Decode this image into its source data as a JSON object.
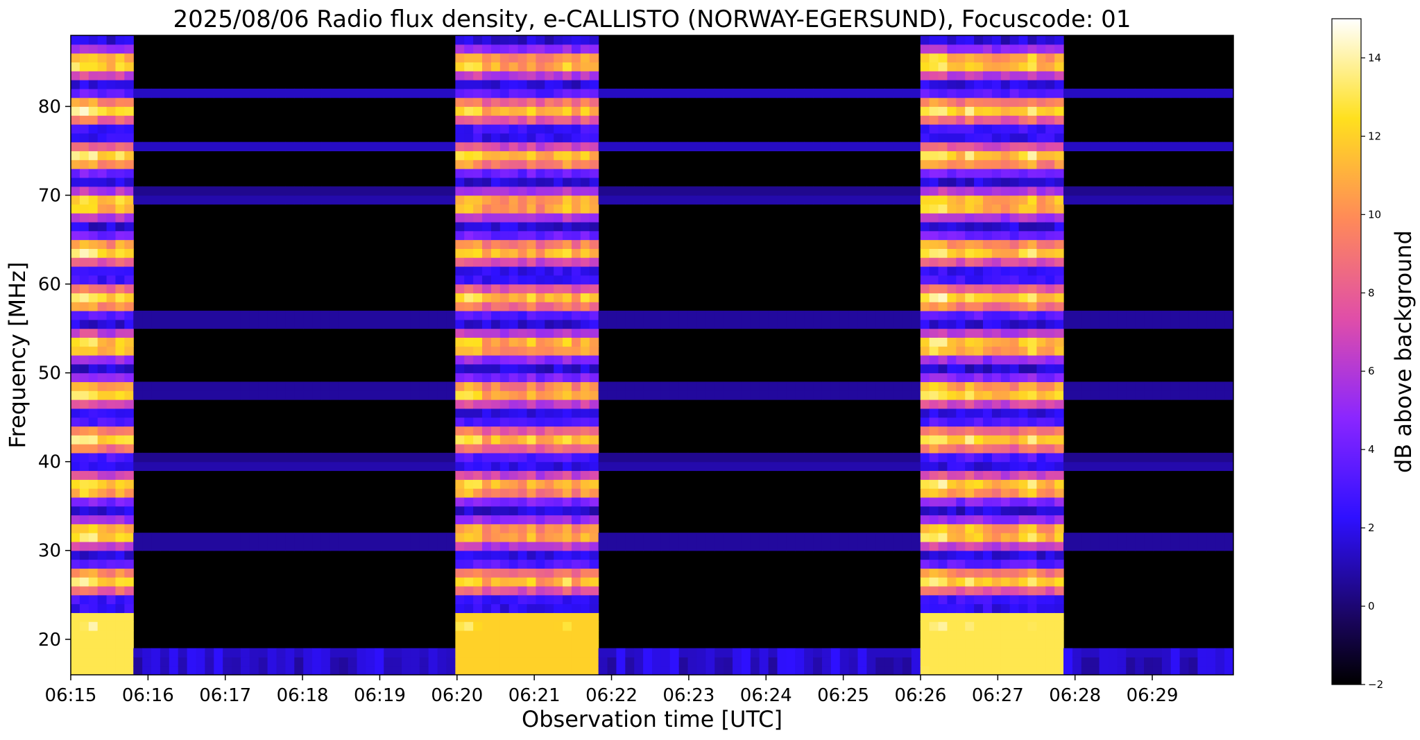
{
  "chart_data": {
    "type": "heatmap",
    "title": "2025/08/06  Radio flux density, e-CALLISTO (NORWAY-EGERSUND), Focuscode: 01",
    "xlabel": "Observation time [UTC]",
    "ylabel": "Frequency [MHz]",
    "colorbar_label": "dB above background",
    "colormap": "gnuplot2",
    "xlim_minutes": [
      0,
      15.05
    ],
    "ylim": [
      16,
      88
    ],
    "clim": [
      -2,
      15
    ],
    "x_ticks": [
      {
        "label": "06:15",
        "minute": 0
      },
      {
        "label": "06:16",
        "minute": 1
      },
      {
        "label": "06:17",
        "minute": 2
      },
      {
        "label": "06:18",
        "minute": 3
      },
      {
        "label": "06:19",
        "minute": 4
      },
      {
        "label": "06:20",
        "minute": 5
      },
      {
        "label": "06:21",
        "minute": 6
      },
      {
        "label": "06:22",
        "minute": 7
      },
      {
        "label": "06:23",
        "minute": 8
      },
      {
        "label": "06:24",
        "minute": 9
      },
      {
        "label": "06:25",
        "minute": 10
      },
      {
        "label": "06:26",
        "minute": 11
      },
      {
        "label": "06:27",
        "minute": 12
      },
      {
        "label": "06:28",
        "minute": 13
      },
      {
        "label": "06:29",
        "minute": 14
      }
    ],
    "y_ticks": [
      20,
      30,
      40,
      50,
      60,
      70,
      80
    ],
    "colorbar_ticks": [
      -2,
      0,
      2,
      4,
      6,
      8,
      10,
      12,
      14
    ],
    "bursts": [
      {
        "start_minute": 0.0,
        "end_minute": 0.85,
        "peak_db": 15,
        "label": "06:15-06:16"
      },
      {
        "start_minute": 5.0,
        "end_minute": 6.85,
        "peak_db": 14,
        "label": "06:20-06:22"
      },
      {
        "start_minute": 11.0,
        "end_minute": 12.85,
        "peak_db": 15,
        "label": "06:26-06:28"
      }
    ],
    "persistent_bands_mhz": [
      17,
      18.5,
      31,
      39.8,
      48,
      56,
      69.8,
      75.5,
      81.5
    ],
    "background_db": -2
  }
}
